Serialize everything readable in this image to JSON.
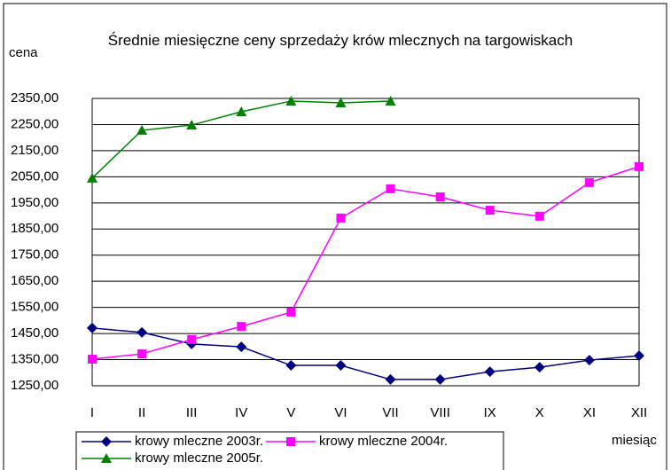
{
  "chart_data": {
    "type": "line",
    "title": "Średnie miesięczne ceny sprzedaży krów mlecznych na targowiskach",
    "y_label": "cena",
    "x_label": "miesiąc",
    "categories": [
      "I",
      "II",
      "III",
      "IV",
      "V",
      "VI",
      "VII",
      "VIII",
      "IX",
      "X",
      "XI",
      "XII"
    ],
    "series": [
      {
        "name": "krowy mleczne 2003r.",
        "color": "#000080",
        "marker": "diamond",
        "values": [
          1471,
          1454,
          1410,
          1399,
          1328,
          1328,
          1274,
          1274,
          1304,
          1321,
          1348,
          1365
        ]
      },
      {
        "name": "krowy mleczne 2004r.",
        "color": "#ff00ff",
        "marker": "square",
        "values": [
          1352,
          1372,
          1427,
          1477,
          1532,
          1892,
          2004,
          1973,
          1922,
          1899,
          2028,
          2089
        ]
      },
      {
        "name": "krowy mleczne 2005r.",
        "color": "#008000",
        "marker": "triangle",
        "values": [
          2045,
          2228,
          2248,
          2299,
          2340,
          2333,
          2340,
          null,
          null,
          null,
          null,
          null
        ]
      }
    ],
    "ylim": [
      1250,
      2350
    ],
    "yticks": [
      {
        "value": 1250,
        "label": "1250,00"
      },
      {
        "value": 1350,
        "label": "1350,00"
      },
      {
        "value": 1450,
        "label": "1450,00"
      },
      {
        "value": 1550,
        "label": "1550,00"
      },
      {
        "value": 1650,
        "label": "1650,00"
      },
      {
        "value": 1750,
        "label": "1750,00"
      },
      {
        "value": 1850,
        "label": "1850,00"
      },
      {
        "value": 1950,
        "label": "1950,00"
      },
      {
        "value": 2050,
        "label": "2050,00"
      },
      {
        "value": 2150,
        "label": "2150,00"
      },
      {
        "value": 2250,
        "label": "2250,00"
      },
      {
        "value": 2350,
        "label": "2350,00"
      }
    ],
    "grid": true,
    "legend": "bottom"
  }
}
